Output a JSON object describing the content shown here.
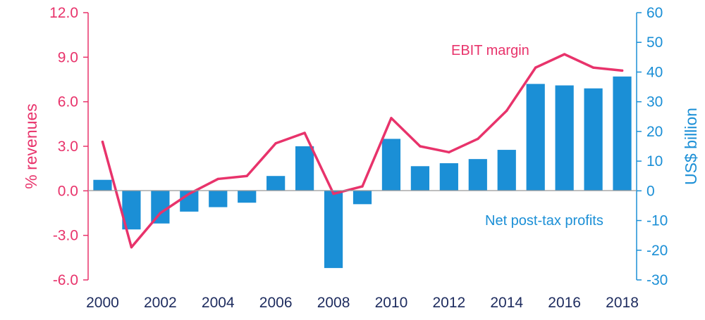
{
  "chart_data": {
    "type": "bar",
    "title": "",
    "x": [
      2000,
      2001,
      2002,
      2003,
      2004,
      2005,
      2006,
      2007,
      2008,
      2009,
      2010,
      2011,
      2012,
      2013,
      2014,
      2015,
      2016,
      2017,
      2018
    ],
    "x_ticks": [
      "2000",
      "2002",
      "2004",
      "2006",
      "2008",
      "2010",
      "2012",
      "2014",
      "2016",
      "2018"
    ],
    "series": [
      {
        "name": "Net post-tax profits",
        "kind": "bar",
        "axis": "right",
        "color": "#1b8fd6",
        "values": [
          3.7,
          -13,
          -11,
          -7,
          -5.5,
          -4,
          5,
          15,
          -26,
          -4.5,
          17.5,
          8.3,
          9.3,
          10.7,
          13.8,
          36,
          35.5,
          34.5,
          38.5
        ]
      },
      {
        "name": "EBIT margin",
        "kind": "line",
        "axis": "left",
        "color": "#e8336b",
        "values": [
          3.3,
          -3.8,
          -1.5,
          -0.2,
          0.8,
          1.0,
          3.2,
          3.9,
          -0.2,
          0.3,
          4.9,
          3.0,
          2.6,
          3.5,
          5.4,
          8.3,
          9.2,
          8.3,
          8.1
        ]
      }
    ],
    "y_left": {
      "label": "% revenues",
      "ylim": [
        -6,
        12
      ],
      "ticks": [
        "-6.0",
        "-3.0",
        "0.0",
        "3.0",
        "6.0",
        "9.0",
        "12.0"
      ]
    },
    "y_right": {
      "label": "US$ billion",
      "ylim": [
        -30,
        60
      ],
      "ticks": [
        "-30",
        "-20",
        "-10",
        "0",
        "10",
        "20",
        "30",
        "40",
        "50",
        "60"
      ]
    },
    "annotations": {
      "line_label": "EBIT margin",
      "bar_label": "Net post-tax profits"
    },
    "grid": false,
    "legend": "none"
  }
}
